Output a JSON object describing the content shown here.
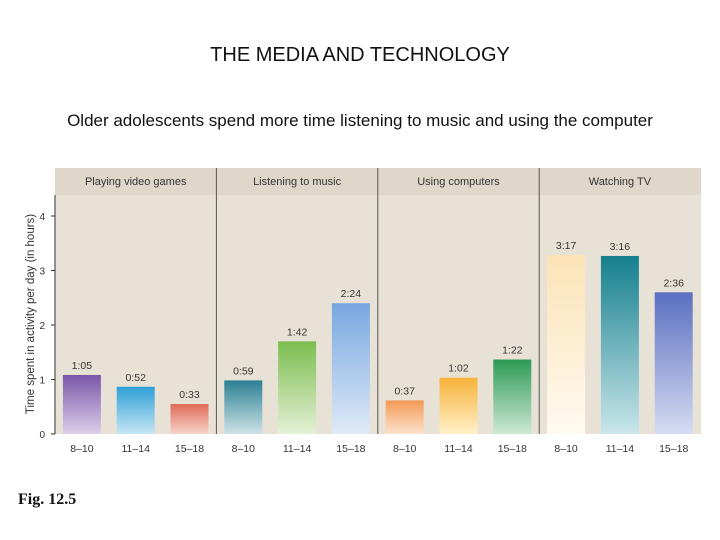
{
  "slide": {
    "title": "THE MEDIA AND TECHNOLOGY",
    "subtitle": "Older adolescents spend more time listening to music and using the computer",
    "figure_label": "Fig. 12.5"
  },
  "colors": {
    "panel_background": "#e8e2d6",
    "header_background": "#dfd8ca",
    "divider": "#555555",
    "axis": "#333333"
  },
  "chart_data": {
    "type": "bar",
    "title": "",
    "xlabel": "",
    "ylabel": "Time spent in activity per day (in hours)",
    "ylim": [
      0,
      4.4
    ],
    "yticks": [
      0,
      1,
      2,
      3,
      4
    ],
    "ytick_labels": [
      "0",
      "1",
      "2",
      "3",
      "4"
    ],
    "grid": false,
    "groups": [
      "Playing video games",
      "Listening to music",
      "Using computers",
      "Watching TV"
    ],
    "bars": [
      {
        "group": "Playing video games",
        "category": "8–10",
        "value": 1.0833,
        "label": "1:05",
        "colors": [
          "#7b55a8",
          "#dcd0ea"
        ]
      },
      {
        "group": "Playing video games",
        "category": "11–14",
        "value": 0.8667,
        "label": "0:52",
        "colors": [
          "#2f9fd6",
          "#c6e6f5"
        ]
      },
      {
        "group": "Playing video games",
        "category": "15–18",
        "value": 0.55,
        "label": "0:33",
        "colors": [
          "#e06b56",
          "#f6d3ca"
        ]
      },
      {
        "group": "Listening to music",
        "category": "8–10",
        "value": 0.9833,
        "label": "0:59",
        "colors": [
          "#2b7f92",
          "#cfe3e8"
        ]
      },
      {
        "group": "Listening to music",
        "category": "11–14",
        "value": 1.7,
        "label": "1:42",
        "colors": [
          "#7cbd4f",
          "#e4f1d6"
        ]
      },
      {
        "group": "Listening to music",
        "category": "15–18",
        "value": 2.4,
        "label": "2:24",
        "colors": [
          "#78a7e0",
          "#dfeaf8"
        ]
      },
      {
        "group": "Using computers",
        "category": "8–10",
        "value": 0.6167,
        "label": "0:37",
        "colors": [
          "#f39a55",
          "#fde2cc"
        ]
      },
      {
        "group": "Using computers",
        "category": "11–14",
        "value": 1.0333,
        "label": "1:02",
        "colors": [
          "#f7b23a",
          "#fff0c9"
        ]
      },
      {
        "group": "Using computers",
        "category": "15–18",
        "value": 1.3667,
        "label": "1:22",
        "colors": [
          "#2e9a55",
          "#cde9d5"
        ]
      },
      {
        "group": "Watching TV",
        "category": "8–10",
        "value": 3.2833,
        "label": "3:17",
        "colors": [
          "#fbe3b6",
          "#fffaf0"
        ]
      },
      {
        "group": "Watching TV",
        "category": "11–14",
        "value": 3.2667,
        "label": "3:16",
        "colors": [
          "#157f8e",
          "#c9e6ea"
        ]
      },
      {
        "group": "Watching TV",
        "category": "15–18",
        "value": 2.6,
        "label": "2:36",
        "colors": [
          "#5a6fc0",
          "#d6dcf2"
        ]
      }
    ]
  }
}
